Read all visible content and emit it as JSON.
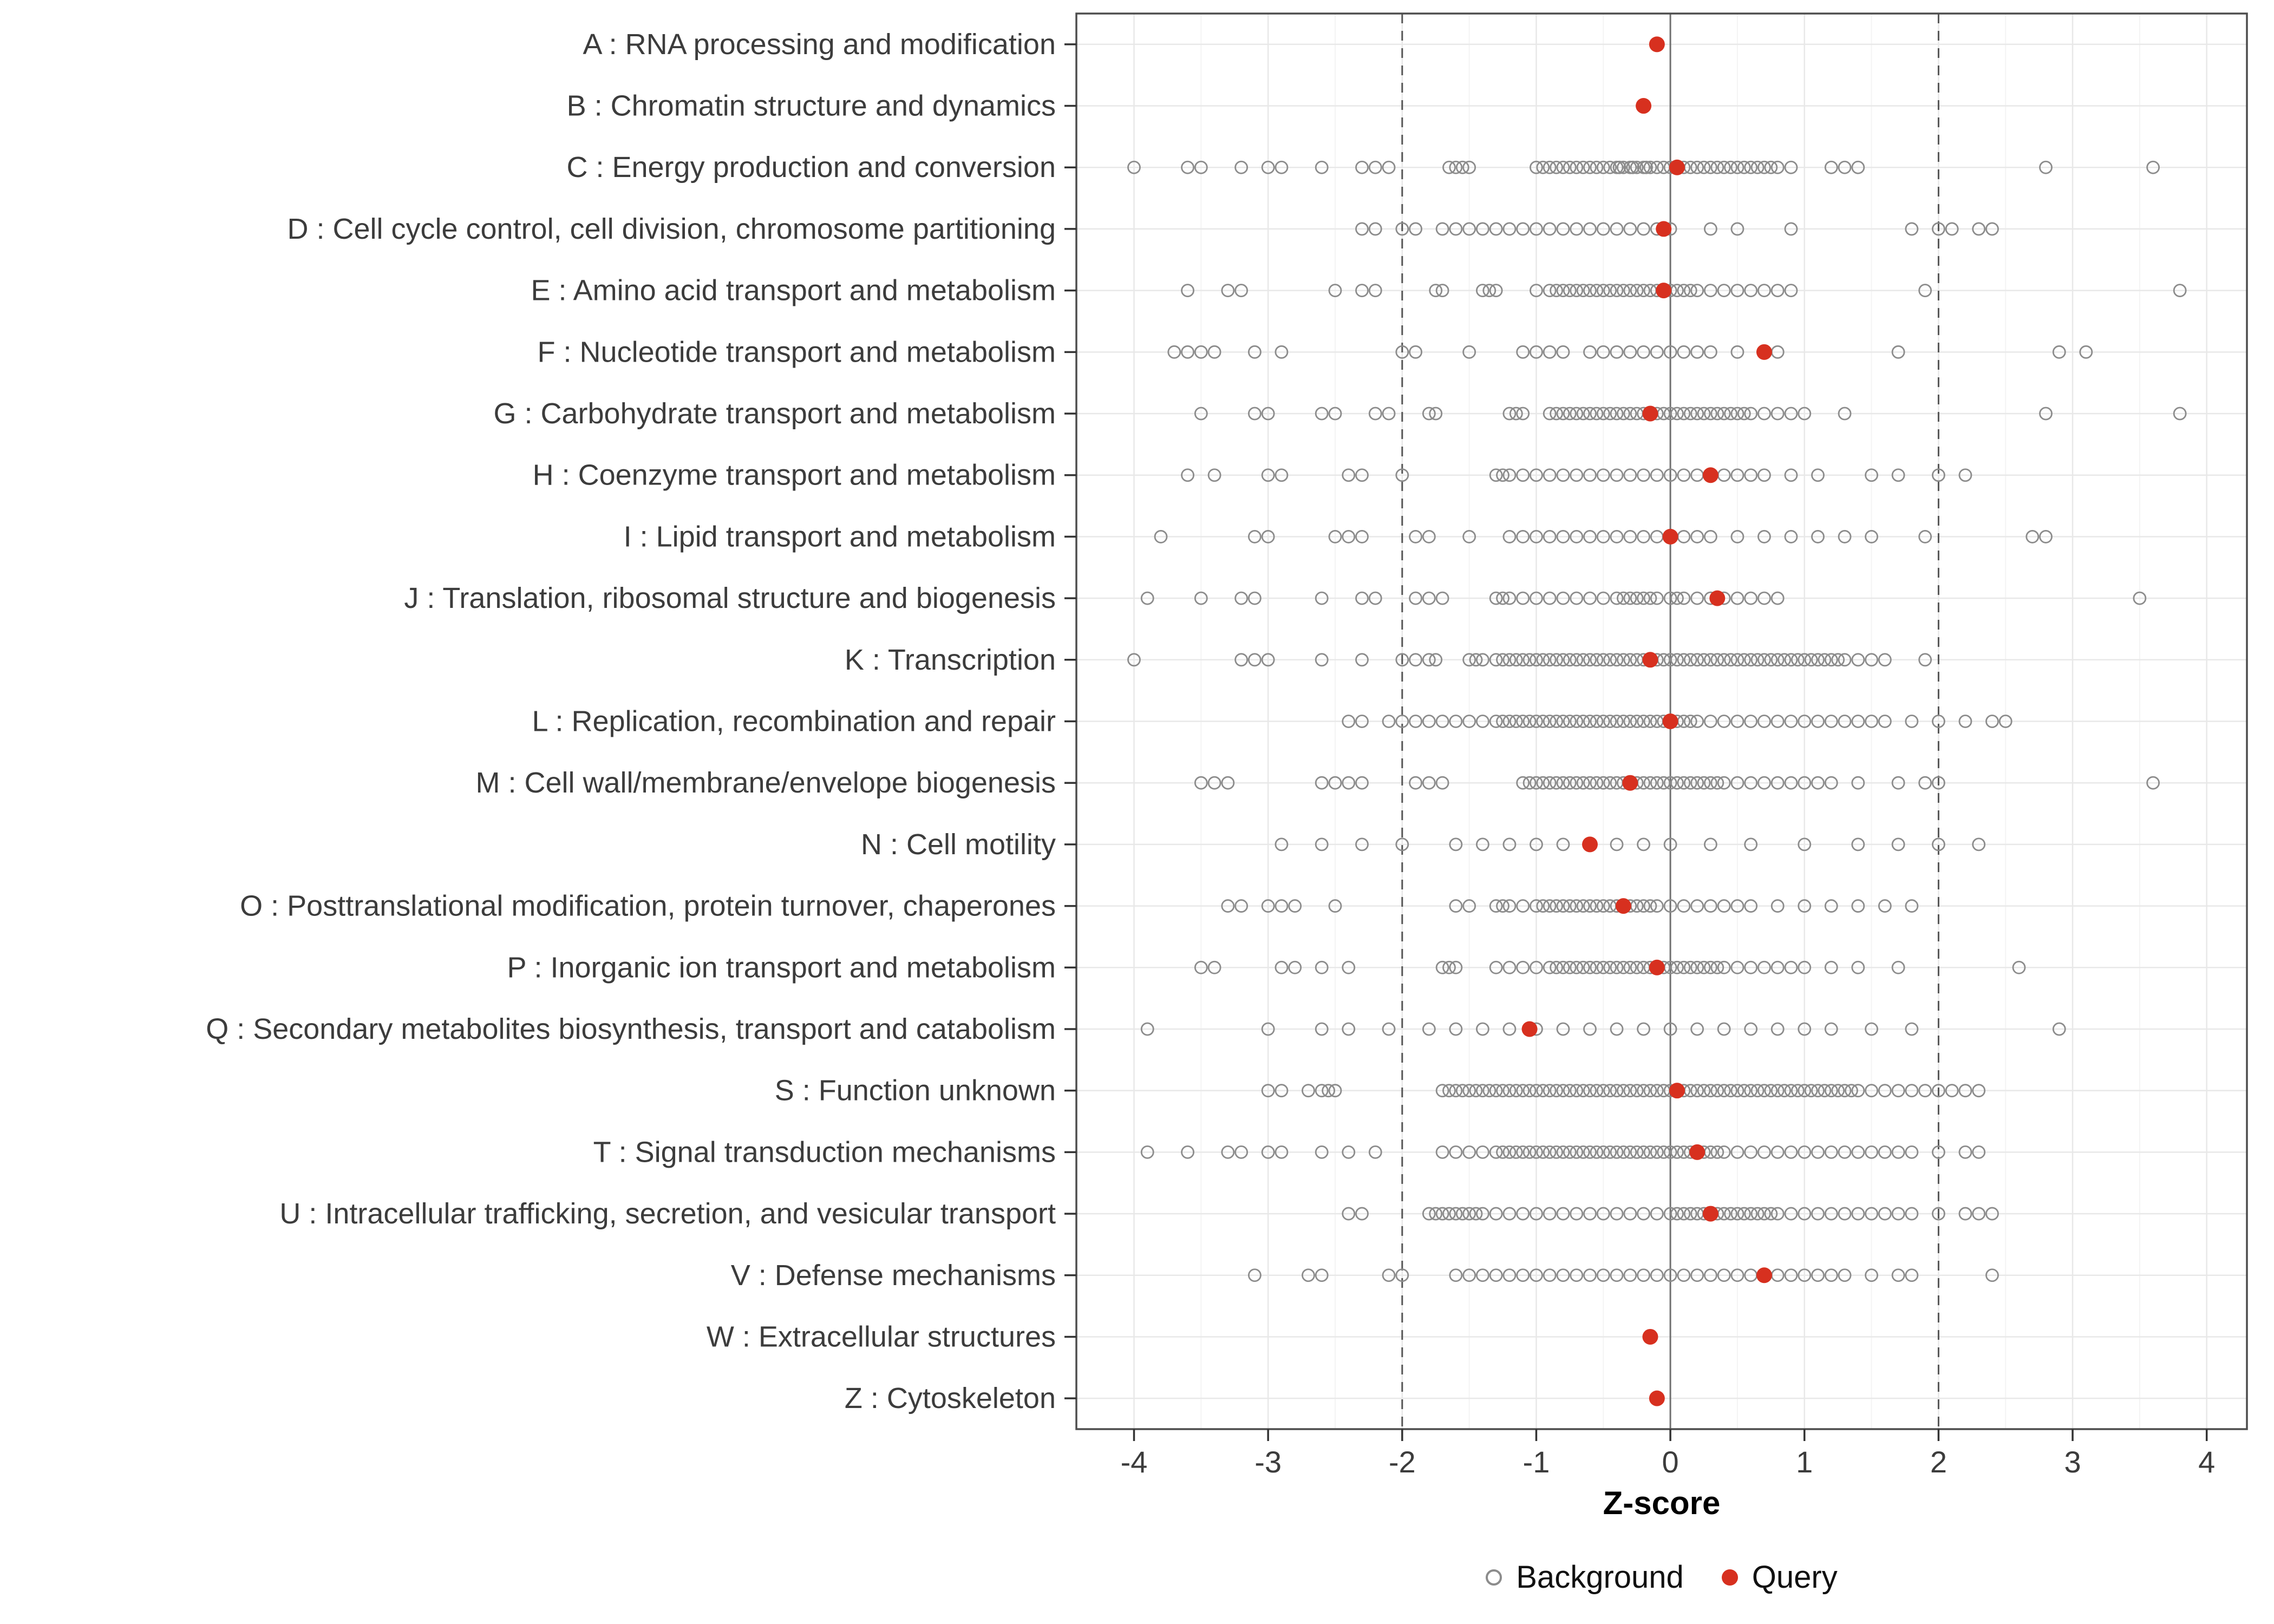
{
  "style": {
    "query_color": "#d7301f",
    "background_stroke": "#8c8c8c",
    "grid_major": "#e8e8e8",
    "grid_minor": "#f4f4f4",
    "axis_text": "#3c3c3c",
    "panel_border": "#4d4d4d",
    "refline_dashed": "#555555",
    "zero_line": "#707070"
  },
  "chart_data": {
    "type": "scatter",
    "orientation": "horizontal-strip",
    "title": "",
    "xlabel": "Z-score",
    "xticks": [
      -4,
      -3,
      -2,
      -1,
      0,
      1,
      2,
      3,
      4
    ],
    "xlim": [
      -4.43,
      4.3
    ],
    "vlines": {
      "solid": [
        0
      ],
      "dashed": [
        -2,
        2
      ]
    },
    "legend": {
      "background": "Background",
      "query": "Query"
    },
    "rows": [
      {
        "label": "A : RNA processing and modification",
        "query": -0.1,
        "background": []
      },
      {
        "label": "B : Chromatin structure and dynamics",
        "query": -0.2,
        "background": []
      },
      {
        "label": "C : Energy production and conversion",
        "query": 0.05,
        "background": [
          -4.0,
          -3.6,
          -3.5,
          -3.2,
          -3.0,
          -2.9,
          -2.6,
          -2.3,
          -2.2,
          -2.1,
          -1.65,
          -1.6,
          -1.55,
          -1.5,
          -1.0,
          -0.95,
          -0.9,
          -0.85,
          -0.8,
          -0.75,
          -0.7,
          -0.65,
          -0.6,
          -0.55,
          -0.5,
          -0.45,
          -0.4,
          -0.38,
          -0.35,
          -0.3,
          -0.28,
          -0.25,
          -0.2,
          -0.18,
          -0.15,
          -0.1,
          -0.05,
          0.0,
          0.05,
          0.1,
          0.15,
          0.2,
          0.25,
          0.3,
          0.35,
          0.4,
          0.45,
          0.5,
          0.55,
          0.6,
          0.65,
          0.7,
          0.75,
          0.8,
          0.9,
          1.2,
          1.3,
          1.4,
          2.8,
          3.6
        ]
      },
      {
        "label": "D : Cell cycle control, cell division, chromosome partitioning",
        "query": -0.05,
        "background": [
          -2.3,
          -2.2,
          -2.0,
          -1.9,
          -1.7,
          -1.6,
          -1.5,
          -1.4,
          -1.3,
          -1.2,
          -1.1,
          -1.0,
          -0.9,
          -0.8,
          -0.7,
          -0.6,
          -0.5,
          -0.4,
          -0.3,
          -0.2,
          -0.1,
          0.0,
          0.3,
          0.5,
          0.9,
          1.8,
          2.0,
          2.1,
          2.3,
          2.4
        ]
      },
      {
        "label": "E : Amino acid transport and metabolism",
        "query": -0.05,
        "background": [
          -3.6,
          -3.3,
          -3.2,
          -2.5,
          -2.3,
          -2.2,
          -1.75,
          -1.7,
          -1.4,
          -1.35,
          -1.3,
          -1.0,
          -0.9,
          -0.85,
          -0.8,
          -0.75,
          -0.7,
          -0.65,
          -0.6,
          -0.55,
          -0.5,
          -0.45,
          -0.4,
          -0.35,
          -0.3,
          -0.25,
          -0.2,
          -0.15,
          -0.1,
          -0.05,
          0.0,
          0.05,
          0.1,
          0.15,
          0.2,
          0.3,
          0.4,
          0.5,
          0.6,
          0.7,
          0.8,
          0.9,
          1.9,
          3.8
        ]
      },
      {
        "label": "F : Nucleotide transport and metabolism",
        "query": 0.7,
        "background": [
          -3.7,
          -3.6,
          -3.5,
          -3.4,
          -3.1,
          -2.9,
          -2.0,
          -1.9,
          -1.5,
          -1.1,
          -1.0,
          -0.9,
          -0.8,
          -0.6,
          -0.5,
          -0.4,
          -0.3,
          -0.2,
          -0.1,
          0.0,
          0.1,
          0.2,
          0.3,
          0.5,
          0.8,
          1.7,
          2.9,
          3.1
        ]
      },
      {
        "label": "G : Carbohydrate transport and metabolism",
        "query": -0.15,
        "background": [
          -3.5,
          -3.1,
          -3.0,
          -2.6,
          -2.5,
          -2.2,
          -2.1,
          -1.8,
          -1.75,
          -1.2,
          -1.15,
          -1.1,
          -0.9,
          -0.85,
          -0.8,
          -0.75,
          -0.7,
          -0.65,
          -0.6,
          -0.55,
          -0.5,
          -0.45,
          -0.4,
          -0.35,
          -0.3,
          -0.25,
          -0.2,
          -0.15,
          -0.1,
          -0.05,
          0.0,
          0.05,
          0.1,
          0.15,
          0.2,
          0.25,
          0.3,
          0.35,
          0.4,
          0.45,
          0.5,
          0.55,
          0.6,
          0.7,
          0.8,
          0.9,
          1.0,
          1.3,
          2.8,
          3.8
        ]
      },
      {
        "label": "H : Coenzyme transport and metabolism",
        "query": 0.3,
        "background": [
          -3.6,
          -3.4,
          -3.0,
          -2.9,
          -2.4,
          -2.3,
          -2.0,
          -1.3,
          -1.25,
          -1.2,
          -1.1,
          -1.0,
          -0.9,
          -0.8,
          -0.7,
          -0.6,
          -0.5,
          -0.4,
          -0.3,
          -0.2,
          -0.1,
          0.0,
          0.1,
          0.2,
          0.3,
          0.4,
          0.5,
          0.6,
          0.7,
          0.9,
          1.1,
          1.5,
          1.7,
          2.0,
          2.2
        ]
      },
      {
        "label": "I : Lipid transport and metabolism",
        "query": 0,
        "background": [
          -3.8,
          -3.1,
          -3.0,
          -2.5,
          -2.4,
          -2.3,
          -1.9,
          -1.8,
          -1.5,
          -1.2,
          -1.1,
          -1.0,
          -0.9,
          -0.8,
          -0.7,
          -0.6,
          -0.5,
          -0.4,
          -0.3,
          -0.2,
          -0.1,
          0.0,
          0.1,
          0.2,
          0.3,
          0.5,
          0.7,
          0.9,
          1.1,
          1.3,
          1.5,
          1.9,
          2.7,
          2.8
        ]
      },
      {
        "label": "J : Translation, ribosomal structure and biogenesis",
        "query": 0.35,
        "background": [
          -3.9,
          -3.5,
          -3.2,
          -3.1,
          -2.6,
          -2.3,
          -2.2,
          -1.9,
          -1.8,
          -1.7,
          -1.3,
          -1.25,
          -1.2,
          -1.1,
          -1.0,
          -0.9,
          -0.8,
          -0.7,
          -0.6,
          -0.5,
          -0.4,
          -0.35,
          -0.3,
          -0.25,
          -0.2,
          -0.15,
          -0.1,
          0.0,
          0.05,
          0.1,
          0.2,
          0.3,
          0.4,
          0.5,
          0.6,
          0.7,
          0.8,
          3.5
        ]
      },
      {
        "label": "K : Transcription",
        "query": -0.15,
        "background": [
          -4.0,
          -3.2,
          -3.1,
          -3.0,
          -2.6,
          -2.3,
          -2.0,
          -1.9,
          -1.8,
          -1.75,
          -1.5,
          -1.45,
          -1.4,
          -1.3,
          -1.25,
          -1.2,
          -1.15,
          -1.1,
          -1.05,
          -1.0,
          -0.95,
          -0.9,
          -0.85,
          -0.8,
          -0.75,
          -0.7,
          -0.65,
          -0.6,
          -0.55,
          -0.5,
          -0.45,
          -0.4,
          -0.35,
          -0.3,
          -0.25,
          -0.2,
          -0.15,
          -0.1,
          -0.05,
          0.0,
          0.05,
          0.1,
          0.15,
          0.2,
          0.25,
          0.3,
          0.35,
          0.4,
          0.45,
          0.5,
          0.55,
          0.6,
          0.65,
          0.7,
          0.75,
          0.8,
          0.85,
          0.9,
          0.95,
          1.0,
          1.05,
          1.1,
          1.15,
          1.2,
          1.25,
          1.3,
          1.4,
          1.5,
          1.6,
          1.9
        ]
      },
      {
        "label": "L : Replication, recombination and repair",
        "query": 0,
        "background": [
          -2.4,
          -2.3,
          -2.1,
          -2.0,
          -1.9,
          -1.8,
          -1.7,
          -1.6,
          -1.5,
          -1.4,
          -1.3,
          -1.25,
          -1.2,
          -1.15,
          -1.1,
          -1.05,
          -1.0,
          -0.95,
          -0.9,
          -0.85,
          -0.8,
          -0.75,
          -0.7,
          -0.65,
          -0.6,
          -0.55,
          -0.5,
          -0.45,
          -0.4,
          -0.35,
          -0.3,
          -0.25,
          -0.2,
          -0.15,
          -0.1,
          -0.05,
          0.0,
          0.05,
          0.1,
          0.15,
          0.2,
          0.3,
          0.4,
          0.5,
          0.6,
          0.7,
          0.8,
          0.9,
          1.0,
          1.1,
          1.2,
          1.3,
          1.4,
          1.5,
          1.6,
          1.8,
          2.0,
          2.2,
          2.4,
          2.5
        ]
      },
      {
        "label": "M : Cell wall/membrane/envelope biogenesis",
        "query": -0.3,
        "background": [
          -3.5,
          -3.4,
          -3.3,
          -2.6,
          -2.5,
          -2.4,
          -2.3,
          -1.9,
          -1.8,
          -1.7,
          -1.1,
          -1.05,
          -1.0,
          -0.95,
          -0.9,
          -0.85,
          -0.8,
          -0.75,
          -0.7,
          -0.65,
          -0.6,
          -0.55,
          -0.5,
          -0.45,
          -0.4,
          -0.35,
          -0.3,
          -0.25,
          -0.2,
          -0.15,
          -0.1,
          -0.05,
          0.0,
          0.05,
          0.1,
          0.15,
          0.2,
          0.25,
          0.3,
          0.35,
          0.4,
          0.5,
          0.6,
          0.7,
          0.8,
          0.9,
          1.0,
          1.1,
          1.2,
          1.4,
          1.7,
          1.9,
          2.0,
          3.6
        ]
      },
      {
        "label": "N : Cell motility",
        "query": -0.6,
        "background": [
          -2.9,
          -2.6,
          -2.3,
          -2.0,
          -1.6,
          -1.4,
          -1.2,
          -1.0,
          -0.8,
          -0.6,
          -0.4,
          -0.2,
          0.0,
          0.3,
          0.6,
          1.0,
          1.4,
          1.7,
          2.0,
          2.3
        ]
      },
      {
        "label": "O : Posttranslational modification, protein turnover, chaperones",
        "query": -0.35,
        "background": [
          -3.3,
          -3.2,
          -3.0,
          -2.9,
          -2.8,
          -2.5,
          -1.6,
          -1.5,
          -1.3,
          -1.25,
          -1.2,
          -1.1,
          -1.0,
          -0.95,
          -0.9,
          -0.85,
          -0.8,
          -0.75,
          -0.7,
          -0.65,
          -0.6,
          -0.55,
          -0.5,
          -0.45,
          -0.4,
          -0.35,
          -0.3,
          -0.25,
          -0.2,
          -0.15,
          -0.1,
          0.0,
          0.1,
          0.2,
          0.3,
          0.4,
          0.5,
          0.6,
          0.8,
          1.0,
          1.2,
          1.4,
          1.6,
          1.8
        ]
      },
      {
        "label": "P : Inorganic ion transport and metabolism",
        "query": -0.1,
        "background": [
          -3.5,
          -3.4,
          -2.9,
          -2.8,
          -2.6,
          -2.4,
          -1.7,
          -1.65,
          -1.6,
          -1.3,
          -1.2,
          -1.1,
          -1.0,
          -0.9,
          -0.85,
          -0.8,
          -0.75,
          -0.7,
          -0.65,
          -0.6,
          -0.55,
          -0.5,
          -0.45,
          -0.4,
          -0.35,
          -0.3,
          -0.25,
          -0.2,
          -0.15,
          -0.1,
          -0.05,
          0.0,
          0.05,
          0.1,
          0.15,
          0.2,
          0.25,
          0.3,
          0.35,
          0.4,
          0.5,
          0.6,
          0.7,
          0.8,
          0.9,
          1.0,
          1.2,
          1.4,
          1.7,
          2.6
        ]
      },
      {
        "label": "Q : Secondary metabolites biosynthesis, transport and catabolism",
        "query": -1.05,
        "background": [
          -3.9,
          -3.0,
          -2.6,
          -2.4,
          -2.1,
          -1.8,
          -1.6,
          -1.4,
          -1.2,
          -1.0,
          -0.8,
          -0.6,
          -0.4,
          -0.2,
          0.0,
          0.2,
          0.4,
          0.6,
          0.8,
          1.0,
          1.2,
          1.5,
          1.8,
          2.9
        ]
      },
      {
        "label": "S : Function unknown",
        "query": 0.05,
        "background": [
          -3.0,
          -2.9,
          -2.7,
          -2.6,
          -2.55,
          -2.5,
          -1.7,
          -1.65,
          -1.6,
          -1.55,
          -1.5,
          -1.45,
          -1.4,
          -1.35,
          -1.3,
          -1.25,
          -1.2,
          -1.15,
          -1.1,
          -1.05,
          -1.0,
          -0.95,
          -0.9,
          -0.85,
          -0.8,
          -0.75,
          -0.7,
          -0.65,
          -0.6,
          -0.55,
          -0.5,
          -0.45,
          -0.4,
          -0.35,
          -0.3,
          -0.25,
          -0.2,
          -0.15,
          -0.1,
          -0.05,
          0.0,
          0.05,
          0.1,
          0.15,
          0.2,
          0.25,
          0.3,
          0.35,
          0.4,
          0.45,
          0.5,
          0.55,
          0.6,
          0.65,
          0.7,
          0.75,
          0.8,
          0.85,
          0.9,
          0.95,
          1.0,
          1.05,
          1.1,
          1.15,
          1.2,
          1.25,
          1.3,
          1.35,
          1.4,
          1.5,
          1.6,
          1.7,
          1.8,
          1.9,
          2.0,
          2.1,
          2.2,
          2.3
        ]
      },
      {
        "label": "T : Signal transduction mechanisms",
        "query": 0.2,
        "background": [
          -3.9,
          -3.6,
          -3.3,
          -3.2,
          -3.0,
          -2.9,
          -2.6,
          -2.4,
          -2.2,
          -1.7,
          -1.6,
          -1.5,
          -1.4,
          -1.3,
          -1.25,
          -1.2,
          -1.15,
          -1.1,
          -1.05,
          -1.0,
          -0.95,
          -0.9,
          -0.85,
          -0.8,
          -0.75,
          -0.7,
          -0.65,
          -0.6,
          -0.55,
          -0.5,
          -0.45,
          -0.4,
          -0.35,
          -0.3,
          -0.25,
          -0.2,
          -0.15,
          -0.1,
          -0.05,
          0.0,
          0.05,
          0.1,
          0.15,
          0.2,
          0.25,
          0.3,
          0.35,
          0.4,
          0.5,
          0.6,
          0.7,
          0.8,
          0.9,
          1.0,
          1.1,
          1.2,
          1.3,
          1.4,
          1.5,
          1.6,
          1.7,
          1.8,
          2.0,
          2.2,
          2.3
        ]
      },
      {
        "label": "U : Intracellular trafficking, secretion, and vesicular transport",
        "query": 0.3,
        "background": [
          -2.4,
          -2.3,
          -1.8,
          -1.75,
          -1.7,
          -1.65,
          -1.6,
          -1.55,
          -1.5,
          -1.45,
          -1.4,
          -1.3,
          -1.2,
          -1.1,
          -1.0,
          -0.9,
          -0.8,
          -0.7,
          -0.6,
          -0.5,
          -0.4,
          -0.3,
          -0.2,
          -0.1,
          0.0,
          0.05,
          0.1,
          0.15,
          0.2,
          0.25,
          0.3,
          0.35,
          0.4,
          0.45,
          0.5,
          0.55,
          0.6,
          0.65,
          0.7,
          0.75,
          0.8,
          0.9,
          1.0,
          1.1,
          1.2,
          1.3,
          1.4,
          1.5,
          1.6,
          1.7,
          1.8,
          2.0,
          2.2,
          2.3,
          2.4
        ]
      },
      {
        "label": "V : Defense mechanisms",
        "query": 0.7,
        "background": [
          -3.1,
          -2.7,
          -2.6,
          -2.1,
          -2.0,
          -1.6,
          -1.5,
          -1.4,
          -1.3,
          -1.2,
          -1.1,
          -1.0,
          -0.9,
          -0.8,
          -0.7,
          -0.6,
          -0.5,
          -0.4,
          -0.3,
          -0.2,
          -0.1,
          0.0,
          0.1,
          0.2,
          0.3,
          0.4,
          0.5,
          0.6,
          0.7,
          0.8,
          0.9,
          1.0,
          1.1,
          1.2,
          1.3,
          1.5,
          1.7,
          1.8,
          2.4
        ]
      },
      {
        "label": "W : Extracellular structures",
        "query": -0.15,
        "background": []
      },
      {
        "label": "Z : Cytoskeleton",
        "query": -0.1,
        "background": []
      }
    ]
  }
}
